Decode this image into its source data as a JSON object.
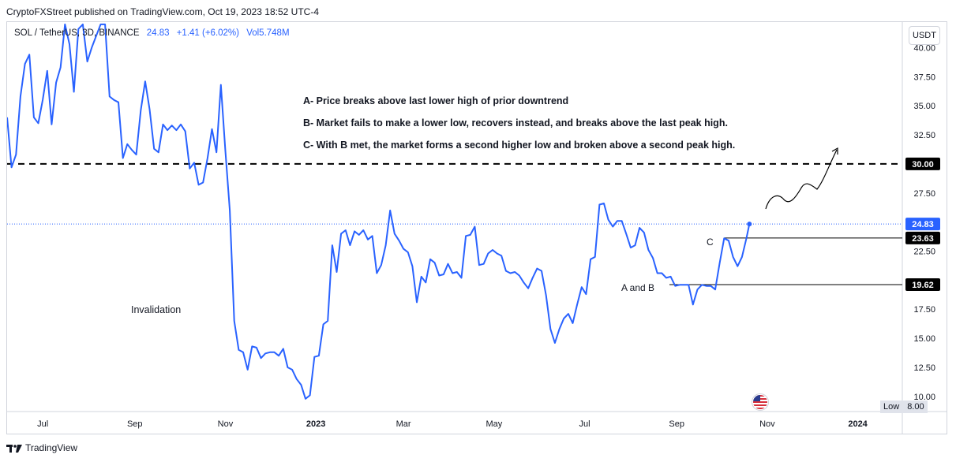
{
  "header": {
    "publisher": "CryptoFXStreet published on TradingView.com, Oct 19, 2023 18:52 UTC-4"
  },
  "symbol": {
    "name": "SOL / TetherUS, 3D, BINANCE",
    "price": "24.83",
    "change": "+1.41 (+6.02%)",
    "volume": "Vol5.748M"
  },
  "currency": "USDT",
  "low": {
    "label": "Low",
    "value": "8.00"
  },
  "brand": "TradingView",
  "icons": {
    "flag": "us-flag-icon",
    "logo": "tradingview-logo-icon"
  },
  "colors": {
    "series": "#2962ff",
    "price_line": "#2962ff",
    "dashed": "#000000",
    "label_bg": "#000000"
  },
  "chart_data": {
    "type": "line",
    "title": "",
    "xlabel": "",
    "ylabel": "",
    "ylim": [
      8.7,
      42.2
    ],
    "y_ticks": [
      "40.00",
      "37.50",
      "35.00",
      "32.50",
      "27.50",
      "22.50",
      "17.50",
      "15.00",
      "12.50",
      "10.00"
    ],
    "x_ticks": [
      "Jul",
      "Sep",
      "Nov",
      "2023",
      "Mar",
      "May",
      "Jul",
      "Sep",
      "Nov",
      "2024"
    ],
    "x_start": "2022-06-07",
    "x_end": "2024-01-31",
    "series": [
      {
        "values": [
          [
            "2022-06-07",
            34.0
          ],
          [
            "2022-06-10",
            29.7
          ],
          [
            "2022-06-13",
            30.8
          ],
          [
            "2022-06-16",
            35.8
          ],
          [
            "2022-06-19",
            38.6
          ],
          [
            "2022-06-22",
            39.4
          ],
          [
            "2022-06-25",
            34.0
          ],
          [
            "2022-06-28",
            33.5
          ],
          [
            "2022-07-01",
            35.5
          ],
          [
            "2022-07-04",
            38.0
          ],
          [
            "2022-07-07",
            33.4
          ],
          [
            "2022-07-10",
            37.0
          ],
          [
            "2022-07-13",
            38.3
          ],
          [
            "2022-07-16",
            42.0
          ],
          [
            "2022-07-19",
            40.3
          ],
          [
            "2022-07-22",
            36.2
          ],
          [
            "2022-07-25",
            41.6
          ],
          [
            "2022-07-28",
            42.0
          ],
          [
            "2022-07-31",
            38.8
          ],
          [
            "2022-08-03",
            40.0
          ],
          [
            "2022-08-06",
            41.0
          ],
          [
            "2022-08-09",
            42.0
          ],
          [
            "2022-08-12",
            42.0
          ],
          [
            "2022-08-15",
            35.8
          ],
          [
            "2022-08-18",
            35.5
          ],
          [
            "2022-08-21",
            35.3
          ],
          [
            "2022-08-24",
            30.5
          ],
          [
            "2022-08-27",
            31.7
          ],
          [
            "2022-08-30",
            31.2
          ],
          [
            "2022-09-02",
            30.8
          ],
          [
            "2022-09-05",
            34.6
          ],
          [
            "2022-09-08",
            37.1
          ],
          [
            "2022-09-11",
            34.7
          ],
          [
            "2022-09-14",
            31.3
          ],
          [
            "2022-09-17",
            31.0
          ],
          [
            "2022-09-20",
            33.4
          ],
          [
            "2022-09-23",
            32.9
          ],
          [
            "2022-09-26",
            33.3
          ],
          [
            "2022-09-29",
            32.9
          ],
          [
            "2022-10-02",
            33.4
          ],
          [
            "2022-10-05",
            32.8
          ],
          [
            "2022-10-08",
            29.6
          ],
          [
            "2022-10-11",
            30.1
          ],
          [
            "2022-10-14",
            28.2
          ],
          [
            "2022-10-17",
            28.4
          ],
          [
            "2022-10-20",
            30.5
          ],
          [
            "2022-10-23",
            33.0
          ],
          [
            "2022-10-26",
            31.0
          ],
          [
            "2022-10-29",
            36.8
          ],
          [
            "2022-11-01",
            31.2
          ],
          [
            "2022-11-04",
            26.0
          ],
          [
            "2022-11-07",
            16.5
          ],
          [
            "2022-11-10",
            14.0
          ],
          [
            "2022-11-13",
            13.8
          ],
          [
            "2022-11-16",
            12.3
          ],
          [
            "2022-11-19",
            14.3
          ],
          [
            "2022-11-22",
            14.2
          ],
          [
            "2022-11-25",
            13.3
          ],
          [
            "2022-11-28",
            13.7
          ],
          [
            "2022-12-01",
            13.8
          ],
          [
            "2022-12-04",
            13.8
          ],
          [
            "2022-12-07",
            13.5
          ],
          [
            "2022-12-10",
            14.1
          ],
          [
            "2022-12-13",
            12.5
          ],
          [
            "2022-12-16",
            12.3
          ],
          [
            "2022-12-19",
            11.5
          ],
          [
            "2022-12-22",
            11.0
          ],
          [
            "2022-12-25",
            9.8
          ],
          [
            "2022-12-28",
            10.1
          ],
          [
            "2022-12-31",
            13.4
          ],
          [
            "2023-01-03",
            13.5
          ],
          [
            "2023-01-06",
            16.2
          ],
          [
            "2023-01-09",
            16.5
          ],
          [
            "2023-01-12",
            23.0
          ],
          [
            "2023-01-15",
            20.7
          ],
          [
            "2023-01-18",
            24.0
          ],
          [
            "2023-01-21",
            24.3
          ],
          [
            "2023-01-24",
            23.0
          ],
          [
            "2023-01-27",
            24.2
          ],
          [
            "2023-01-30",
            23.9
          ],
          [
            "2023-02-02",
            24.3
          ],
          [
            "2023-02-05",
            23.5
          ],
          [
            "2023-02-08",
            23.8
          ],
          [
            "2023-02-11",
            20.6
          ],
          [
            "2023-02-14",
            21.3
          ],
          [
            "2023-02-17",
            23.0
          ],
          [
            "2023-02-20",
            26.0
          ],
          [
            "2023-02-23",
            24.0
          ],
          [
            "2023-02-26",
            23.4
          ],
          [
            "2023-03-01",
            22.7
          ],
          [
            "2023-03-04",
            22.4
          ],
          [
            "2023-03-07",
            21.2
          ],
          [
            "2023-03-10",
            18.1
          ],
          [
            "2023-03-13",
            20.3
          ],
          [
            "2023-03-16",
            19.8
          ],
          [
            "2023-03-19",
            21.8
          ],
          [
            "2023-03-22",
            21.5
          ],
          [
            "2023-03-25",
            20.4
          ],
          [
            "2023-03-28",
            20.5
          ],
          [
            "2023-03-31",
            21.4
          ],
          [
            "2023-04-03",
            20.6
          ],
          [
            "2023-04-06",
            20.7
          ],
          [
            "2023-04-09",
            20.2
          ],
          [
            "2023-04-12",
            23.8
          ],
          [
            "2023-04-15",
            23.9
          ],
          [
            "2023-04-18",
            24.6
          ],
          [
            "2023-04-21",
            21.3
          ],
          [
            "2023-04-24",
            21.4
          ],
          [
            "2023-04-27",
            22.3
          ],
          [
            "2023-04-30",
            22.6
          ],
          [
            "2023-05-03",
            22.3
          ],
          [
            "2023-05-06",
            22.1
          ],
          [
            "2023-05-09",
            20.8
          ],
          [
            "2023-05-12",
            20.6
          ],
          [
            "2023-05-15",
            20.7
          ],
          [
            "2023-05-18",
            20.4
          ],
          [
            "2023-05-21",
            19.8
          ],
          [
            "2023-05-24",
            19.3
          ],
          [
            "2023-05-27",
            20.2
          ],
          [
            "2023-05-30",
            21.0
          ],
          [
            "2023-06-02",
            20.8
          ],
          [
            "2023-06-05",
            18.7
          ],
          [
            "2023-06-08",
            15.8
          ],
          [
            "2023-06-11",
            14.6
          ],
          [
            "2023-06-14",
            15.8
          ],
          [
            "2023-06-17",
            16.7
          ],
          [
            "2023-06-20",
            17.1
          ],
          [
            "2023-06-23",
            16.3
          ],
          [
            "2023-06-26",
            17.9
          ],
          [
            "2023-06-29",
            19.4
          ],
          [
            "2023-07-02",
            18.8
          ],
          [
            "2023-07-05",
            21.8
          ],
          [
            "2023-07-08",
            22.0
          ],
          [
            "2023-07-11",
            26.5
          ],
          [
            "2023-07-14",
            26.6
          ],
          [
            "2023-07-17",
            25.2
          ],
          [
            "2023-07-20",
            24.6
          ],
          [
            "2023-07-23",
            25.1
          ],
          [
            "2023-07-26",
            25.1
          ],
          [
            "2023-07-29",
            24.0
          ],
          [
            "2023-08-01",
            22.8
          ],
          [
            "2023-08-04",
            23.0
          ],
          [
            "2023-08-07",
            24.5
          ],
          [
            "2023-08-10",
            24.1
          ],
          [
            "2023-08-13",
            22.6
          ],
          [
            "2023-08-16",
            21.9
          ],
          [
            "2023-08-19",
            20.6
          ],
          [
            "2023-08-22",
            20.6
          ],
          [
            "2023-08-25",
            20.2
          ],
          [
            "2023-08-28",
            20.3
          ],
          [
            "2023-08-31",
            19.5
          ],
          [
            "2023-09-03",
            19.6
          ],
          [
            "2023-09-06",
            19.6
          ],
          [
            "2023-09-09",
            19.6
          ],
          [
            "2023-09-12",
            17.9
          ],
          [
            "2023-09-15",
            19.2
          ],
          [
            "2023-09-18",
            19.6
          ],
          [
            "2023-09-21",
            19.5
          ],
          [
            "2023-09-24",
            19.5
          ],
          [
            "2023-09-27",
            19.2
          ],
          [
            "2023-09-30",
            21.5
          ],
          [
            "2023-10-03",
            23.6
          ],
          [
            "2023-10-06",
            23.4
          ],
          [
            "2023-10-09",
            22.0
          ],
          [
            "2023-10-12",
            21.2
          ],
          [
            "2023-10-15",
            22.0
          ],
          [
            "2023-10-18",
            23.6
          ],
          [
            "2023-10-20",
            24.83
          ]
        ]
      }
    ],
    "last_price": "24.83",
    "levels": [
      {
        "value": 30.0,
        "label": "30.00",
        "style": "dashed"
      },
      {
        "value": 23.63,
        "label": "23.63",
        "style": "solid",
        "annotation": "C"
      },
      {
        "value": 19.62,
        "label": "19.62",
        "style": "solid",
        "annotation": "A and B"
      }
    ],
    "annotations": [
      "A- Price breaks above last lower high of prior downtrend",
      "B- Market fails to make a lower low, recovers instead, and breaks above the last peak high.",
      "C- With B met, the market forms a second higher low and broken above a second peak high.",
      "Invalidation"
    ]
  }
}
